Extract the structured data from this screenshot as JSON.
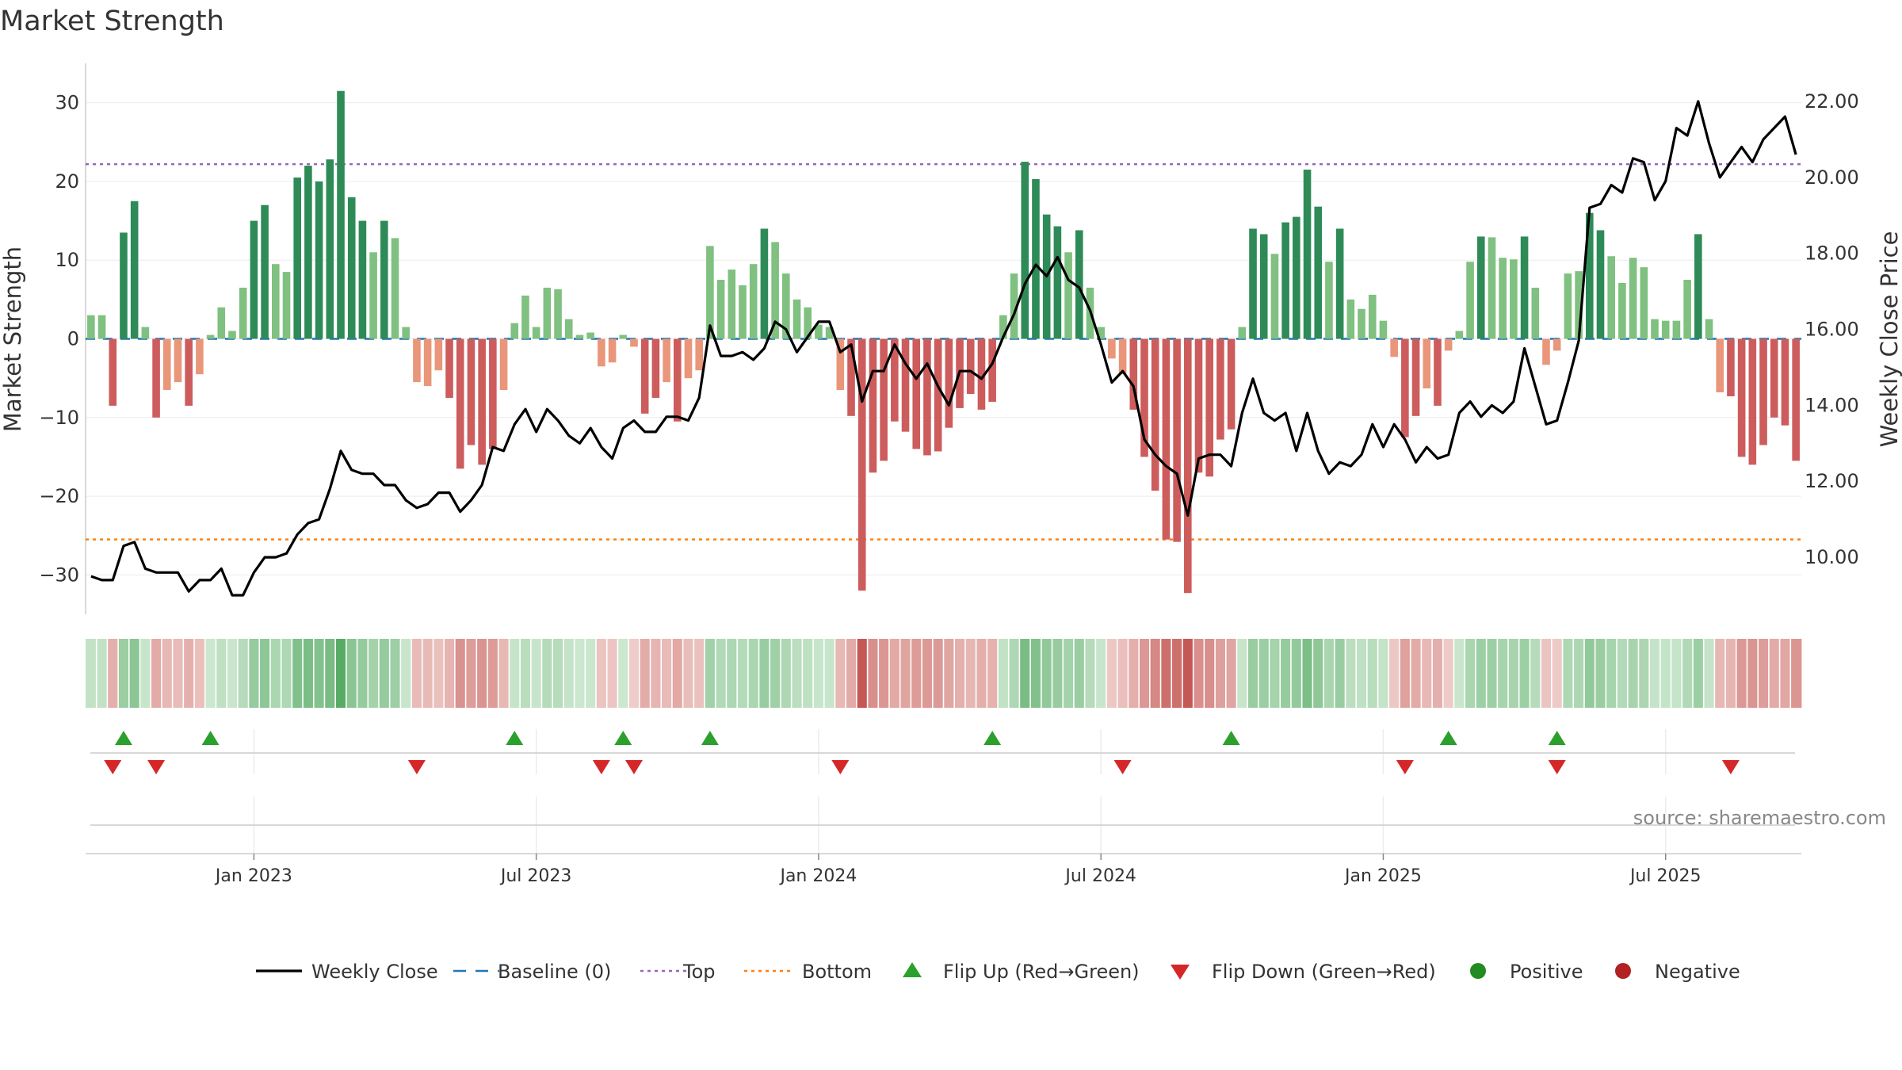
{
  "chart_data": {
    "type": "bar",
    "title": "Market Strength",
    "ylabel_left": "Market Strength",
    "ylabel_right": "Weekly Close Price",
    "source": "source: sharemaestro.com",
    "x_ticks": [
      "Jan 2023",
      "Jul 2023",
      "Jan 2024",
      "Jul 2024",
      "Jan 2025",
      "Jul 2025"
    ],
    "x_tick_weeks": [
      15,
      41,
      67,
      93,
      119,
      145
    ],
    "y_left": {
      "min": -35,
      "max": 35,
      "ticks": [
        30,
        20,
        10,
        0,
        -10,
        -20,
        -30
      ],
      "tick_labels": [
        "30",
        "20",
        "10",
        "0",
        "−10",
        "−20",
        "−30"
      ]
    },
    "y_right": {
      "min": 8.5,
      "max": 23.0,
      "ticks": [
        22,
        20,
        18,
        16,
        14,
        12,
        10
      ],
      "tick_labels": [
        "22.00",
        "20.00",
        "18.00",
        "16.00",
        "14.00",
        "12.00",
        "10.00"
      ]
    },
    "reference_lines": {
      "baseline": 0,
      "top": 22.2,
      "bottom": -25.5
    },
    "grid": true,
    "colors": {
      "strong_positive": "#2e8b57",
      "weak_positive": "#80c080",
      "strong_negative": "#cd5c5c",
      "weak_negative": "#e9967a",
      "close_line": "#000000",
      "baseline": "#1f77b4",
      "top": "#9467bd",
      "bottom": "#ff7f0e",
      "flip_up": "#2ca02c",
      "flip_down": "#d62728",
      "positive_dot": "#228b22",
      "negative_dot": "#b22222"
    },
    "strength": [
      3,
      3,
      -8.5,
      13.5,
      17.5,
      1.5,
      -10,
      -6.5,
      -5.5,
      -8.5,
      -4.5,
      0.5,
      4,
      1,
      6.5,
      15,
      17,
      9.5,
      8.5,
      20.5,
      22,
      20,
      22.8,
      31.5,
      18,
      15,
      11,
      15,
      12.8,
      1.5,
      -5.5,
      -6,
      -4,
      -7.5,
      -16.5,
      -13.5,
      -16,
      -14,
      -6.5,
      2,
      5.5,
      1.5,
      6.5,
      6.3,
      2.5,
      0.5,
      0.8,
      -3.5,
      -3,
      0.5,
      -1,
      -9.5,
      -7.5,
      -5.5,
      -10.5,
      -5,
      -4,
      11.8,
      7.5,
      8.8,
      6.8,
      9.5,
      14,
      12.3,
      8.3,
      5,
      4,
      1.8,
      1.5,
      -6.5,
      -9.8,
      -32,
      -17,
      -15.5,
      -10.5,
      -11.8,
      -14,
      -14.8,
      -14.3,
      -11.3,
      -8.8,
      -7,
      -9,
      -8,
      3,
      8.3,
      22.5,
      20.3,
      15.8,
      14.3,
      11,
      13.8,
      6.5,
      1.5,
      -2.5,
      -4.5,
      -9,
      -15,
      -19.3,
      -25.5,
      -25.8,
      -32.3,
      -17,
      -17.5,
      -12.8,
      -11.5,
      1.5,
      14,
      13.3,
      10.8,
      14.8,
      15.5,
      21.5,
      16.8,
      9.8,
      14,
      5,
      3.8,
      5.6,
      2.3,
      -2.3,
      -12.5,
      -9.8,
      -6.3,
      -8.5,
      -1.5,
      1,
      9.8,
      13,
      12.9,
      10.3,
      10.1,
      13,
      6.5,
      -3.3,
      -1.5,
      8.3,
      8.6,
      16,
      13.8,
      10.5,
      7.1,
      10.3,
      9.1,
      2.5,
      2.3,
      2.3,
      7.5,
      13.3,
      2.5,
      -6.8,
      -7.3,
      -15,
      -16,
      -13.5,
      -10,
      -11,
      -15.5
    ],
    "close": [
      9.5,
      9.4,
      9.4,
      10.3,
      10.4,
      9.7,
      9.6,
      9.6,
      9.6,
      9.1,
      9.4,
      9.4,
      9.7,
      9.0,
      9.0,
      9.6,
      10.0,
      10.0,
      10.1,
      10.6,
      10.9,
      11.0,
      11.8,
      12.8,
      12.3,
      12.2,
      12.2,
      11.9,
      11.9,
      11.5,
      11.3,
      11.4,
      11.7,
      11.7,
      11.2,
      11.5,
      11.9,
      12.9,
      12.8,
      13.5,
      13.9,
      13.3,
      13.9,
      13.6,
      13.2,
      13.0,
      13.4,
      12.9,
      12.6,
      13.4,
      13.6,
      13.3,
      13.3,
      13.7,
      13.7,
      13.6,
      14.2,
      16.1,
      15.3,
      15.3,
      15.4,
      15.2,
      15.5,
      16.2,
      16.0,
      15.4,
      15.8,
      16.2,
      16.2,
      15.4,
      15.6,
      14.1,
      14.9,
      14.9,
      15.6,
      15.1,
      14.7,
      15.1,
      14.5,
      14.0,
      14.9,
      14.9,
      14.7,
      15.1,
      15.8,
      16.4,
      17.2,
      17.7,
      17.4,
      17.9,
      17.3,
      17.1,
      16.5,
      15.6,
      14.6,
      14.9,
      14.5,
      13.1,
      12.7,
      12.4,
      12.2,
      11.1,
      12.6,
      12.7,
      12.7,
      12.4,
      13.8,
      14.7,
      13.8,
      13.6,
      13.8,
      12.8,
      13.8,
      12.8,
      12.2,
      12.5,
      12.4,
      12.7,
      13.5,
      12.9,
      13.5,
      13.1,
      12.5,
      12.9,
      12.6,
      12.7,
      13.8,
      14.1,
      13.7,
      14.0,
      13.8,
      14.1,
      15.5,
      14.5,
      13.5,
      13.6,
      14.6,
      15.7,
      19.2,
      19.3,
      19.8,
      19.6,
      20.5,
      20.4,
      19.4,
      19.9,
      21.3,
      21.1,
      22.0,
      20.9,
      20.0,
      20.4,
      20.8,
      20.4,
      21.0,
      21.3,
      21.6,
      20.6
    ],
    "flip_up_weeks": [
      3,
      11,
      39,
      49,
      57,
      83,
      105,
      125,
      135
    ],
    "flip_down_weeks": [
      2,
      6,
      30,
      47,
      50,
      69,
      95,
      121,
      135,
      151
    ],
    "legend": [
      {
        "key": "close",
        "label": "Weekly Close"
      },
      {
        "key": "baseline",
        "label": "Baseline (0)"
      },
      {
        "key": "top",
        "label": "Top"
      },
      {
        "key": "bottom",
        "label": "Bottom"
      },
      {
        "key": "flip_up",
        "label": "Flip Up (Red→Green)"
      },
      {
        "key": "flip_down",
        "label": "Flip Down (Green→Red)"
      },
      {
        "key": "positive",
        "label": "Positive"
      },
      {
        "key": "negative",
        "label": "Negative"
      }
    ]
  }
}
